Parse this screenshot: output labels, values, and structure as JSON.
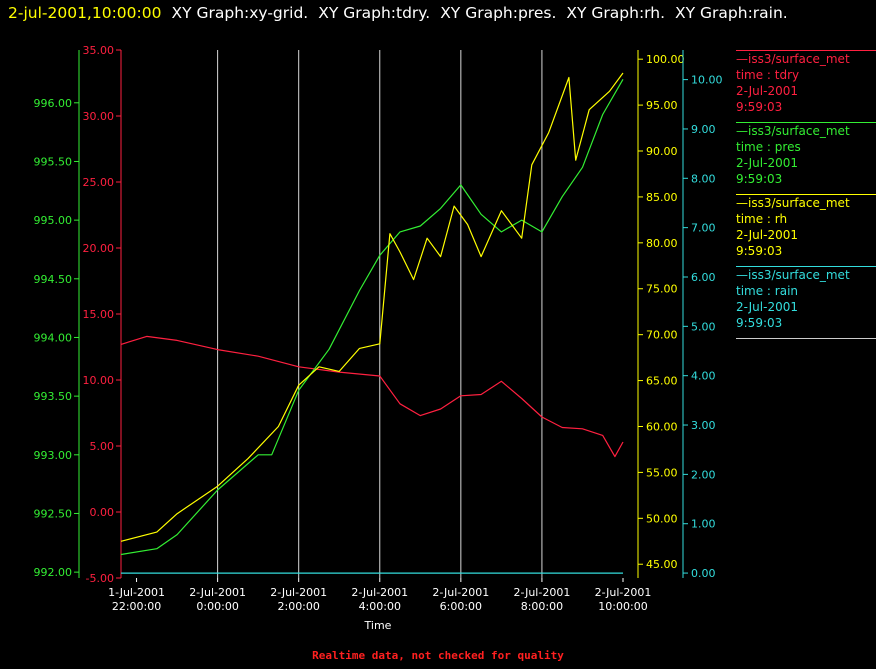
{
  "header": {
    "timestamp": "2-jul-2001,10:00:00",
    "graph_titles": [
      "XY Graph:xy-grid.",
      "XY Graph:tdry.",
      "XY Graph:pres.",
      "XY Graph:rh.",
      "XY Graph:rain."
    ]
  },
  "legend": [
    {
      "source": "iss3/surface_met",
      "variable": "time : tdry",
      "date": "2-Jul-2001",
      "time": "9:59:03",
      "color": "#ff2040"
    },
    {
      "source": "iss3/surface_met",
      "variable": "time : pres",
      "date": "2-Jul-2001",
      "time": "9:59:03",
      "color": "#33ee33"
    },
    {
      "source": "iss3/surface_met",
      "variable": "time : rh",
      "date": "2-Jul-2001",
      "time": "9:59:03",
      "color": "#ffff00"
    },
    {
      "source": "iss3/surface_met",
      "variable": "time : rain",
      "date": "2-Jul-2001",
      "time": "9:59:03",
      "color": "#33dddd"
    }
  ],
  "footnote": "Realtime data, not checked for quality",
  "chart_data": {
    "type": "line",
    "xlabel": "Time",
    "x_range": [
      "1-Jul-2001 21:37:00",
      "2-Jul-2001 10:00:00"
    ],
    "x_ticks": [
      {
        "date": "1-Jul-2001",
        "time": "22:00:00"
      },
      {
        "date": "2-Jul-2001",
        "time": "0:00:00"
      },
      {
        "date": "2-Jul-2001",
        "time": "2:00:00"
      },
      {
        "date": "2-Jul-2001",
        "time": "4:00:00"
      },
      {
        "date": "2-Jul-2001",
        "time": "6:00:00"
      },
      {
        "date": "2-Jul-2001",
        "time": "8:00:00"
      },
      {
        "date": "2-Jul-2001",
        "time": "10:00:00"
      }
    ],
    "grid": "vertical",
    "axes": {
      "pres": {
        "side": "left",
        "color": "#33ee33",
        "range": [
          991.95,
          996.45
        ],
        "ticks": [
          "992.00",
          "992.50",
          "993.00",
          "993.50",
          "994.00",
          "994.50",
          "995.00",
          "995.50",
          "996.00"
        ]
      },
      "tdry": {
        "side": "left",
        "color": "#ff2040",
        "range": [
          -5,
          35
        ],
        "ticks": [
          "-5.00",
          "0.00",
          "5.00",
          "10.00",
          "15.00",
          "20.00",
          "25.00",
          "30.00",
          "35.00"
        ]
      },
      "rh": {
        "side": "right",
        "color": "#ffff00",
        "range": [
          43.5,
          101
        ],
        "ticks": [
          "45.00",
          "50.00",
          "55.00",
          "60.00",
          "65.00",
          "70.00",
          "75.00",
          "80.00",
          "85.00",
          "90.00",
          "95.00",
          "100.00"
        ]
      },
      "rain": {
        "side": "right",
        "color": "#33dddd",
        "range": [
          -0.1,
          10.6
        ],
        "ticks": [
          "0.00",
          "1.00",
          "2.00",
          "3.00",
          "4.00",
          "5.00",
          "6.00",
          "7.00",
          "8.00",
          "9.00",
          "10.00"
        ]
      }
    },
    "series": [
      {
        "name": "tdry",
        "axis": "tdry",
        "x": [
          "1-Jul-2001 21:37:00",
          "1-Jul-2001 22:15:00",
          "1-Jul-2001 23:00:00",
          "2-Jul-2001 0:00:00",
          "2-Jul-2001 1:00:00",
          "2-Jul-2001 2:00:00",
          "2-Jul-2001 3:00:00",
          "2-Jul-2001 4:00:00",
          "2-Jul-2001 4:30:00",
          "2-Jul-2001 5:00:00",
          "2-Jul-2001 5:30:00",
          "2-Jul-2001 6:00:00",
          "2-Jul-2001 6:30:00",
          "2-Jul-2001 7:00:00",
          "2-Jul-2001 7:30:00",
          "2-Jul-2001 8:00:00",
          "2-Jul-2001 8:30:00",
          "2-Jul-2001 9:00:00",
          "2-Jul-2001 9:30:00",
          "2-Jul-2001 9:48:00",
          "2-Jul-2001 10:00:00"
        ],
        "values": [
          12.7,
          13.3,
          13.0,
          12.3,
          11.8,
          11.0,
          10.6,
          10.3,
          8.2,
          7.3,
          7.8,
          8.8,
          8.9,
          9.9,
          8.6,
          7.2,
          6.4,
          6.3,
          5.8,
          4.2,
          5.3
        ]
      },
      {
        "name": "pres",
        "axis": "pres",
        "x": [
          "1-Jul-2001 21:37:00",
          "1-Jul-2001 22:30:00",
          "1-Jul-2001 23:00:00",
          "2-Jul-2001 0:00:00",
          "2-Jul-2001 1:00:00",
          "2-Jul-2001 1:20:00",
          "2-Jul-2001 2:00:00",
          "2-Jul-2001 2:45:00",
          "2-Jul-2001 3:30:00",
          "2-Jul-2001 4:00:00",
          "2-Jul-2001 4:30:00",
          "2-Jul-2001 5:00:00",
          "2-Jul-2001 5:30:00",
          "2-Jul-2001 6:00:00",
          "2-Jul-2001 6:30:00",
          "2-Jul-2001 7:00:00",
          "2-Jul-2001 7:30:00",
          "2-Jul-2001 8:00:00",
          "2-Jul-2001 8:30:00",
          "2-Jul-2001 9:00:00",
          "2-Jul-2001 9:30:00",
          "2-Jul-2001 10:00:00"
        ],
        "values": [
          992.15,
          992.2,
          992.32,
          992.7,
          993.0,
          993.0,
          993.55,
          993.9,
          994.4,
          994.7,
          994.9,
          994.95,
          995.1,
          995.3,
          995.05,
          994.9,
          995.0,
          994.9,
          995.2,
          995.45,
          995.9,
          996.2
        ]
      },
      {
        "name": "rh",
        "axis": "rh",
        "x": [
          "1-Jul-2001 21:37:00",
          "1-Jul-2001 22:30:00",
          "1-Jul-2001 23:00:00",
          "2-Jul-2001 0:00:00",
          "2-Jul-2001 0:45:00",
          "2-Jul-2001 1:30:00",
          "2-Jul-2001 2:00:00",
          "2-Jul-2001 2:30:00",
          "2-Jul-2001 3:00:00",
          "2-Jul-2001 3:30:00",
          "2-Jul-2001 4:00:00",
          "2-Jul-2001 4:15:00",
          "2-Jul-2001 4:30:00",
          "2-Jul-2001 4:50:00",
          "2-Jul-2001 5:10:00",
          "2-Jul-2001 5:30:00",
          "2-Jul-2001 5:50:00",
          "2-Jul-2001 6:10:00",
          "2-Jul-2001 6:30:00",
          "2-Jul-2001 7:00:00",
          "2-Jul-2001 7:30:00",
          "2-Jul-2001 7:45:00",
          "2-Jul-2001 8:10:00",
          "2-Jul-2001 8:40:00",
          "2-Jul-2001 8:50:00",
          "2-Jul-2001 9:10:00",
          "2-Jul-2001 9:40:00",
          "2-Jul-2001 10:00:00"
        ],
        "values": [
          47.5,
          48.5,
          50.5,
          53.5,
          56.5,
          60.0,
          64.5,
          66.5,
          66.0,
          68.5,
          69.0,
          81.0,
          79.0,
          76.0,
          80.5,
          78.5,
          84.0,
          82.0,
          78.5,
          83.5,
          80.5,
          88.5,
          92.0,
          98.0,
          89.0,
          94.5,
          96.5,
          98.5
        ]
      },
      {
        "name": "rain",
        "axis": "rain",
        "x": [
          "1-Jul-2001 21:37:00",
          "2-Jul-2001 10:00:00"
        ],
        "values": [
          0.0,
          0.0
        ]
      }
    ]
  }
}
